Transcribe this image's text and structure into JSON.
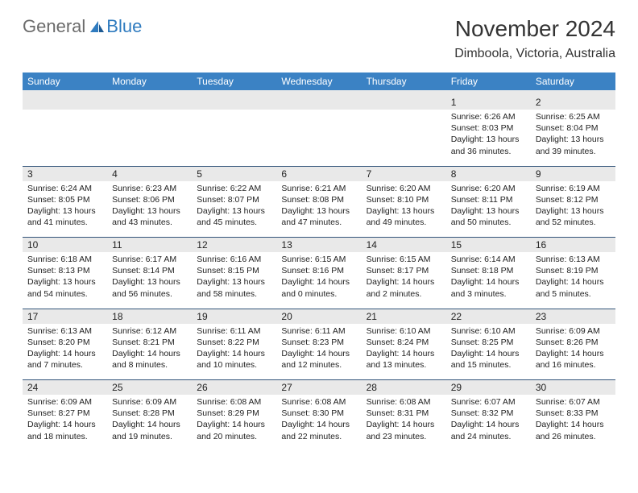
{
  "logo": {
    "general": "General",
    "blue": "Blue"
  },
  "title": "November 2024",
  "location": "Dimboola, Victoria, Australia",
  "colors": {
    "header_bg": "#3b82c4",
    "header_text": "#ffffff",
    "daynum_bg": "#e9e9e9",
    "border": "#33557a",
    "logo_gray": "#6b6b6b",
    "logo_blue": "#2f7bbf"
  },
  "weekdays": [
    "Sunday",
    "Monday",
    "Tuesday",
    "Wednesday",
    "Thursday",
    "Friday",
    "Saturday"
  ],
  "weeks": [
    [
      {
        "n": "",
        "sr": "",
        "ss": "",
        "dl": ""
      },
      {
        "n": "",
        "sr": "",
        "ss": "",
        "dl": ""
      },
      {
        "n": "",
        "sr": "",
        "ss": "",
        "dl": ""
      },
      {
        "n": "",
        "sr": "",
        "ss": "",
        "dl": ""
      },
      {
        "n": "",
        "sr": "",
        "ss": "",
        "dl": ""
      },
      {
        "n": "1",
        "sr": "Sunrise: 6:26 AM",
        "ss": "Sunset: 8:03 PM",
        "dl": "Daylight: 13 hours and 36 minutes."
      },
      {
        "n": "2",
        "sr": "Sunrise: 6:25 AM",
        "ss": "Sunset: 8:04 PM",
        "dl": "Daylight: 13 hours and 39 minutes."
      }
    ],
    [
      {
        "n": "3",
        "sr": "Sunrise: 6:24 AM",
        "ss": "Sunset: 8:05 PM",
        "dl": "Daylight: 13 hours and 41 minutes."
      },
      {
        "n": "4",
        "sr": "Sunrise: 6:23 AM",
        "ss": "Sunset: 8:06 PM",
        "dl": "Daylight: 13 hours and 43 minutes."
      },
      {
        "n": "5",
        "sr": "Sunrise: 6:22 AM",
        "ss": "Sunset: 8:07 PM",
        "dl": "Daylight: 13 hours and 45 minutes."
      },
      {
        "n": "6",
        "sr": "Sunrise: 6:21 AM",
        "ss": "Sunset: 8:08 PM",
        "dl": "Daylight: 13 hours and 47 minutes."
      },
      {
        "n": "7",
        "sr": "Sunrise: 6:20 AM",
        "ss": "Sunset: 8:10 PM",
        "dl": "Daylight: 13 hours and 49 minutes."
      },
      {
        "n": "8",
        "sr": "Sunrise: 6:20 AM",
        "ss": "Sunset: 8:11 PM",
        "dl": "Daylight: 13 hours and 50 minutes."
      },
      {
        "n": "9",
        "sr": "Sunrise: 6:19 AM",
        "ss": "Sunset: 8:12 PM",
        "dl": "Daylight: 13 hours and 52 minutes."
      }
    ],
    [
      {
        "n": "10",
        "sr": "Sunrise: 6:18 AM",
        "ss": "Sunset: 8:13 PM",
        "dl": "Daylight: 13 hours and 54 minutes."
      },
      {
        "n": "11",
        "sr": "Sunrise: 6:17 AM",
        "ss": "Sunset: 8:14 PM",
        "dl": "Daylight: 13 hours and 56 minutes."
      },
      {
        "n": "12",
        "sr": "Sunrise: 6:16 AM",
        "ss": "Sunset: 8:15 PM",
        "dl": "Daylight: 13 hours and 58 minutes."
      },
      {
        "n": "13",
        "sr": "Sunrise: 6:15 AM",
        "ss": "Sunset: 8:16 PM",
        "dl": "Daylight: 14 hours and 0 minutes."
      },
      {
        "n": "14",
        "sr": "Sunrise: 6:15 AM",
        "ss": "Sunset: 8:17 PM",
        "dl": "Daylight: 14 hours and 2 minutes."
      },
      {
        "n": "15",
        "sr": "Sunrise: 6:14 AM",
        "ss": "Sunset: 8:18 PM",
        "dl": "Daylight: 14 hours and 3 minutes."
      },
      {
        "n": "16",
        "sr": "Sunrise: 6:13 AM",
        "ss": "Sunset: 8:19 PM",
        "dl": "Daylight: 14 hours and 5 minutes."
      }
    ],
    [
      {
        "n": "17",
        "sr": "Sunrise: 6:13 AM",
        "ss": "Sunset: 8:20 PM",
        "dl": "Daylight: 14 hours and 7 minutes."
      },
      {
        "n": "18",
        "sr": "Sunrise: 6:12 AM",
        "ss": "Sunset: 8:21 PM",
        "dl": "Daylight: 14 hours and 8 minutes."
      },
      {
        "n": "19",
        "sr": "Sunrise: 6:11 AM",
        "ss": "Sunset: 8:22 PM",
        "dl": "Daylight: 14 hours and 10 minutes."
      },
      {
        "n": "20",
        "sr": "Sunrise: 6:11 AM",
        "ss": "Sunset: 8:23 PM",
        "dl": "Daylight: 14 hours and 12 minutes."
      },
      {
        "n": "21",
        "sr": "Sunrise: 6:10 AM",
        "ss": "Sunset: 8:24 PM",
        "dl": "Daylight: 14 hours and 13 minutes."
      },
      {
        "n": "22",
        "sr": "Sunrise: 6:10 AM",
        "ss": "Sunset: 8:25 PM",
        "dl": "Daylight: 14 hours and 15 minutes."
      },
      {
        "n": "23",
        "sr": "Sunrise: 6:09 AM",
        "ss": "Sunset: 8:26 PM",
        "dl": "Daylight: 14 hours and 16 minutes."
      }
    ],
    [
      {
        "n": "24",
        "sr": "Sunrise: 6:09 AM",
        "ss": "Sunset: 8:27 PM",
        "dl": "Daylight: 14 hours and 18 minutes."
      },
      {
        "n": "25",
        "sr": "Sunrise: 6:09 AM",
        "ss": "Sunset: 8:28 PM",
        "dl": "Daylight: 14 hours and 19 minutes."
      },
      {
        "n": "26",
        "sr": "Sunrise: 6:08 AM",
        "ss": "Sunset: 8:29 PM",
        "dl": "Daylight: 14 hours and 20 minutes."
      },
      {
        "n": "27",
        "sr": "Sunrise: 6:08 AM",
        "ss": "Sunset: 8:30 PM",
        "dl": "Daylight: 14 hours and 22 minutes."
      },
      {
        "n": "28",
        "sr": "Sunrise: 6:08 AM",
        "ss": "Sunset: 8:31 PM",
        "dl": "Daylight: 14 hours and 23 minutes."
      },
      {
        "n": "29",
        "sr": "Sunrise: 6:07 AM",
        "ss": "Sunset: 8:32 PM",
        "dl": "Daylight: 14 hours and 24 minutes."
      },
      {
        "n": "30",
        "sr": "Sunrise: 6:07 AM",
        "ss": "Sunset: 8:33 PM",
        "dl": "Daylight: 14 hours and 26 minutes."
      }
    ]
  ]
}
